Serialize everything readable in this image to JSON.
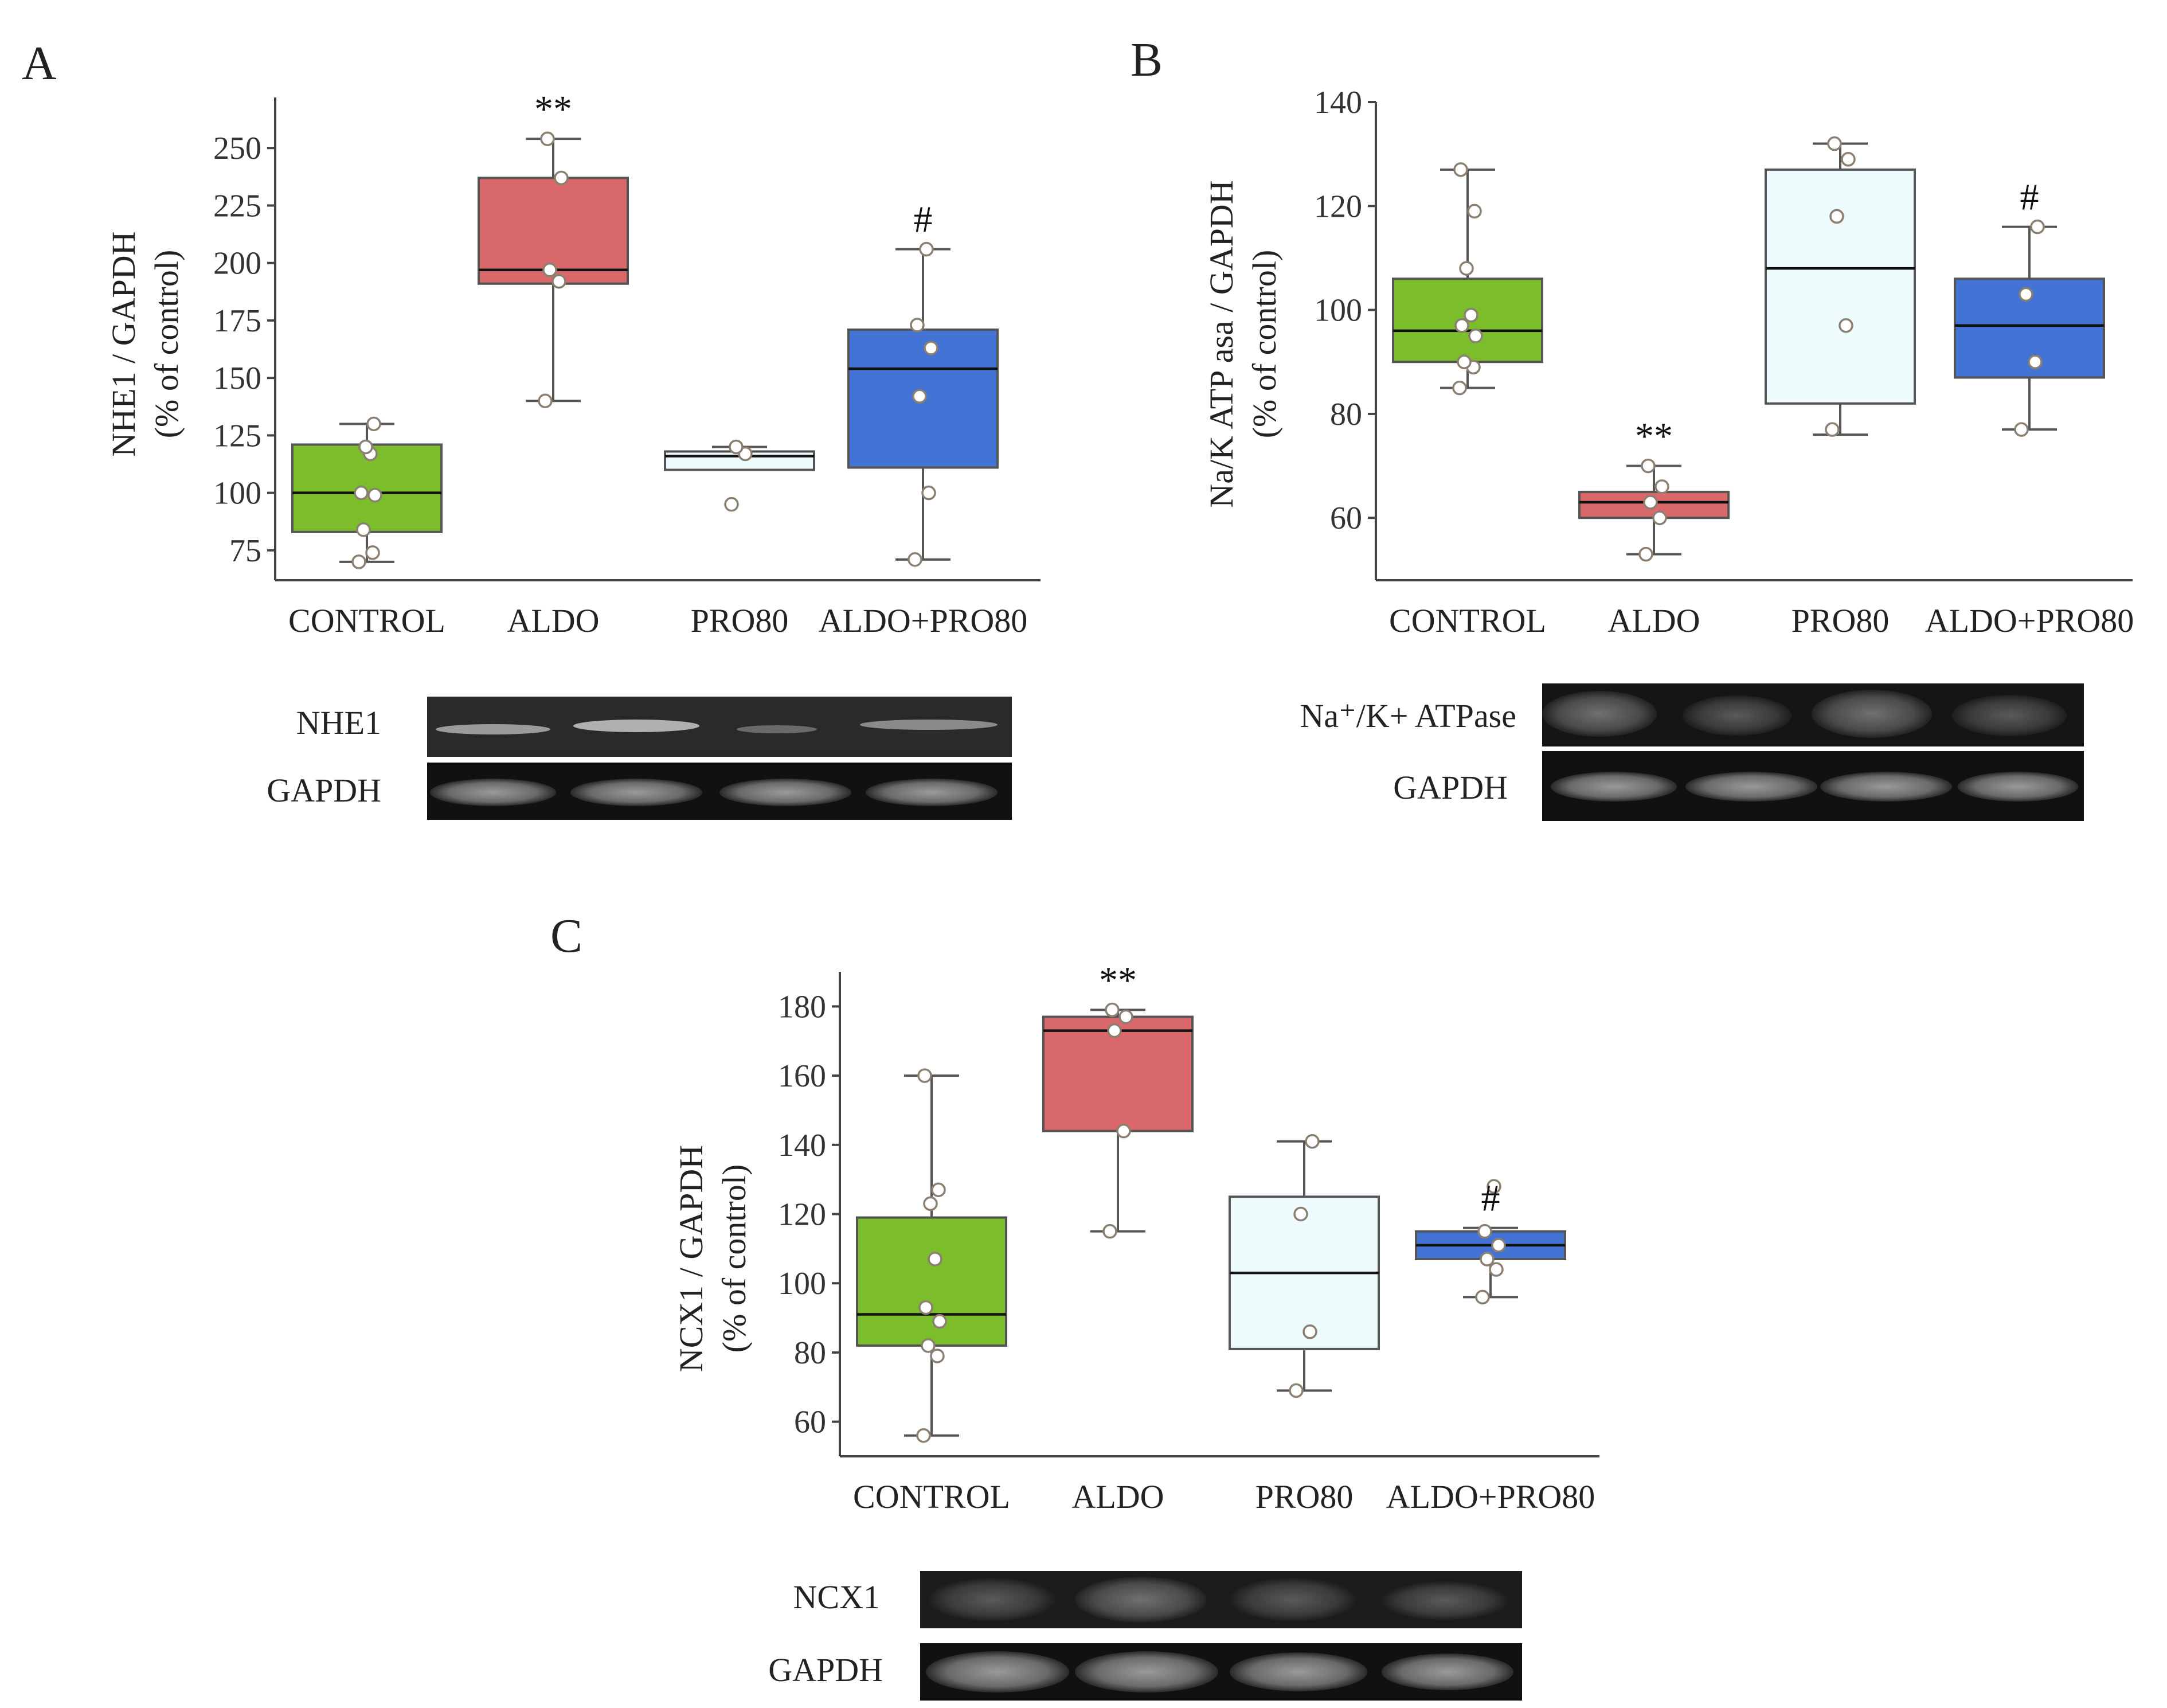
{
  "colors": {
    "CONTROL": "#7cbd2c",
    "ALDO": "#d9686a",
    "PRO80": "#edfbfc",
    "ALDO+PRO80": "#4373d4"
  },
  "chart_data": [
    {
      "panel": "A",
      "type": "box",
      "ylabel": "NHE1 / GAPDH",
      "ylabel2": "(% of control)",
      "categories": [
        "CONTROL",
        "ALDO",
        "PRO80",
        "ALDO+PRO80"
      ],
      "yticks": [
        75,
        100,
        125,
        150,
        175,
        200,
        225,
        250
      ],
      "ylim": [
        62,
        272
      ],
      "boxes": [
        {
          "category": "CONTROL",
          "whisker_low": 70,
          "q1": 83,
          "median": 100,
          "q3": 121,
          "whisker_high": 130,
          "points": [
            70,
            74,
            84,
            99,
            100,
            117,
            120,
            130
          ],
          "sig": ""
        },
        {
          "category": "ALDO",
          "whisker_low": 140,
          "q1": 191,
          "median": 197,
          "q3": 237,
          "whisker_high": 254,
          "points": [
            140,
            192,
            197,
            237,
            254
          ],
          "sig": "**"
        },
        {
          "category": "PRO80",
          "whisker_low": 110,
          "q1": 110,
          "median": 116,
          "q3": 118,
          "whisker_high": 120,
          "points": [
            95,
            117,
            120
          ],
          "sig": ""
        },
        {
          "category": "ALDO+PRO80",
          "whisker_low": 71,
          "q1": 111,
          "median": 154,
          "q3": 171,
          "whisker_high": 206,
          "points": [
            71,
            100,
            142,
            163,
            173,
            206
          ],
          "sig": "#"
        }
      ],
      "blot_labels": [
        "NHE1",
        "GAPDH"
      ]
    },
    {
      "panel": "B",
      "type": "box",
      "ylabel": "Na/K ATP asa / GAPDH",
      "ylabel2": "(% of control)",
      "categories": [
        "CONTROL",
        "ALDO",
        "PRO80",
        "ALDO+PRO80"
      ],
      "yticks": [
        60,
        80,
        100,
        120,
        140
      ],
      "ylim": [
        48,
        140
      ],
      "boxes": [
        {
          "category": "CONTROL",
          "whisker_low": 85,
          "q1": 90,
          "median": 96,
          "q3": 106,
          "whisker_high": 127,
          "points": [
            85,
            89,
            90,
            95,
            97,
            99,
            108,
            119,
            127
          ],
          "sig": ""
        },
        {
          "category": "ALDO",
          "whisker_low": 53,
          "q1": 60,
          "median": 63,
          "q3": 65,
          "whisker_high": 70,
          "points": [
            53,
            60,
            63,
            66,
            70
          ],
          "sig": "**"
        },
        {
          "category": "PRO80",
          "whisker_low": 76,
          "q1": 82,
          "median": 108,
          "q3": 127,
          "whisker_high": 132,
          "points": [
            77,
            97,
            118,
            129,
            132
          ],
          "sig": ""
        },
        {
          "category": "ALDO+PRO80",
          "whisker_low": 77,
          "q1": 87,
          "median": 97,
          "q3": 106,
          "whisker_high": 116,
          "points": [
            77,
            90,
            103,
            116
          ],
          "sig": "#"
        }
      ],
      "blot_labels": [
        "Na⁺/K+ ATPase",
        "GAPDH"
      ]
    },
    {
      "panel": "C",
      "type": "box",
      "ylabel": "NCX1 / GAPDH",
      "ylabel2": "(% of control)",
      "categories": [
        "CONTROL",
        "ALDO",
        "PRO80",
        "ALDO+PRO80"
      ],
      "yticks": [
        60,
        80,
        100,
        120,
        140,
        160,
        180
      ],
      "ylim": [
        50,
        190
      ],
      "boxes": [
        {
          "category": "CONTROL",
          "whisker_low": 56,
          "q1": 82,
          "median": 91,
          "q3": 119,
          "whisker_high": 160,
          "points": [
            56,
            79,
            82,
            89,
            93,
            107,
            123,
            127,
            160
          ],
          "sig": ""
        },
        {
          "category": "ALDO",
          "whisker_low": 115,
          "q1": 144,
          "median": 173,
          "q3": 177,
          "whisker_high": 179,
          "points": [
            115,
            144,
            173,
            177,
            179
          ],
          "sig": "**"
        },
        {
          "category": "PRO80",
          "whisker_low": 69,
          "q1": 81,
          "median": 103,
          "q3": 125,
          "whisker_high": 141,
          "points": [
            69,
            86,
            120,
            141
          ],
          "sig": ""
        },
        {
          "category": "ALDO+PRO80",
          "whisker_low": 96,
          "q1": 107,
          "median": 111,
          "q3": 115,
          "whisker_high": 116,
          "points": [
            96,
            104,
            107,
            111,
            115,
            128
          ],
          "sig": "#"
        }
      ],
      "blot_labels": [
        "NCX1",
        "GAPDH"
      ]
    }
  ]
}
